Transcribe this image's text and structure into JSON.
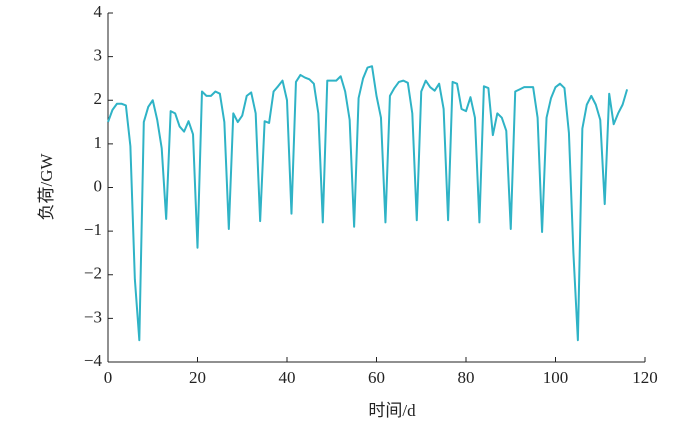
{
  "chart_data": {
    "type": "line",
    "x_label": "时间/d",
    "y_label": "负荷/GW",
    "xlim": [
      0,
      120
    ],
    "xticks": [
      0,
      20,
      40,
      60,
      80,
      100,
      120
    ],
    "ylim": [
      -4,
      4
    ],
    "yticks": [
      {
        "value": -4,
        "label": "−4"
      },
      {
        "value": -3,
        "label": "−3"
      },
      {
        "value": -2,
        "label": "−2"
      },
      {
        "value": -1,
        "label": "−1"
      },
      0,
      1,
      2,
      3,
      4
    ],
    "grid": false,
    "series": [
      {
        "color": "#2fb3c6",
        "x": [
          0,
          1,
          2,
          3,
          4,
          5,
          6,
          7,
          8,
          9,
          10,
          11,
          12,
          13,
          14,
          15,
          16,
          17,
          18,
          19,
          20,
          21,
          22,
          23,
          24,
          25,
          26,
          27,
          28,
          29,
          30,
          31,
          32,
          33,
          34,
          35,
          36,
          37,
          38,
          39,
          40,
          41,
          42,
          43,
          44,
          45,
          46,
          47,
          48,
          49,
          50,
          51,
          52,
          53,
          54,
          55,
          56,
          57,
          58,
          59,
          60,
          61,
          62,
          63,
          64,
          65,
          66,
          67,
          68,
          69,
          70,
          71,
          72,
          73,
          74,
          75,
          76,
          77,
          78,
          79,
          80,
          81,
          82,
          83,
          84,
          85,
          86,
          87,
          88,
          89,
          90,
          91,
          92,
          93,
          94,
          95,
          96,
          97,
          98,
          99,
          100,
          101,
          102,
          103,
          104,
          105,
          106,
          107,
          108,
          109,
          110,
          111,
          112,
          113,
          114,
          115,
          116
        ],
        "values": [
          1.5,
          1.78,
          1.92,
          1.92,
          1.88,
          0.95,
          -2.1,
          -3.5,
          1.5,
          1.85,
          2.0,
          1.55,
          0.9,
          -0.72,
          1.75,
          1.7,
          1.4,
          1.28,
          1.52,
          1.22,
          -1.38,
          2.2,
          2.1,
          2.1,
          2.2,
          2.15,
          1.5,
          -0.95,
          1.7,
          1.5,
          1.65,
          2.1,
          2.18,
          1.7,
          -0.77,
          1.52,
          1.48,
          2.2,
          2.32,
          2.45,
          2.0,
          -0.6,
          2.42,
          2.58,
          2.52,
          2.48,
          2.38,
          1.7,
          -0.8,
          2.45,
          2.45,
          2.45,
          2.55,
          2.2,
          1.55,
          -0.9,
          2.05,
          2.5,
          2.75,
          2.78,
          2.1,
          1.6,
          -0.8,
          2.1,
          2.28,
          2.42,
          2.45,
          2.4,
          1.7,
          -0.75,
          2.2,
          2.45,
          2.3,
          2.22,
          2.38,
          1.8,
          -0.75,
          2.42,
          2.38,
          1.8,
          1.75,
          2.07,
          1.6,
          -0.8,
          2.32,
          2.28,
          1.2,
          1.7,
          1.6,
          1.3,
          -0.95,
          2.2,
          2.25,
          2.3,
          2.3,
          2.3,
          1.6,
          -1.02,
          1.6,
          2.05,
          2.3,
          2.38,
          2.28,
          1.25,
          -1.5,
          -3.5,
          1.35,
          1.9,
          2.1,
          1.9,
          1.55,
          -0.38,
          2.15,
          1.45,
          1.7,
          1.9,
          2.25
        ]
      }
    ]
  }
}
